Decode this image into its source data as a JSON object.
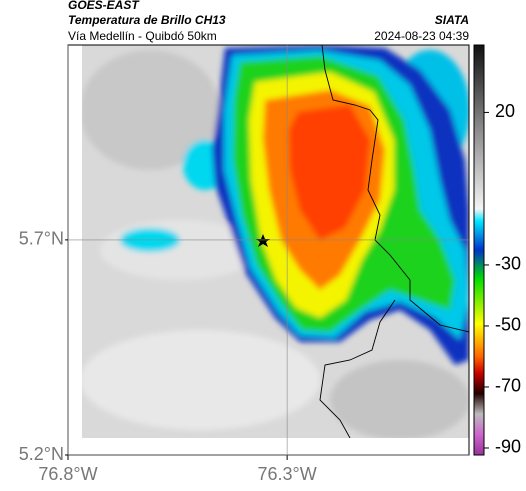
{
  "header": {
    "satellite": "GOES-EAST",
    "product": "Temperatura de Brillo CH13",
    "source": "SIATA",
    "route": "Vía Medellín - Quibdó 50km",
    "timestamp": "2024-08-23 04:39"
  },
  "map": {
    "xlim": [
      -76.8,
      -75.885
    ],
    "ylim": [
      5.2,
      6.153
    ],
    "xticks": [
      {
        "value": -76.8,
        "label": "76.8°W"
      },
      {
        "value": -76.3,
        "label": "76.3°W"
      }
    ],
    "yticks": [
      {
        "value": 5.7,
        "label": "5.7°N"
      },
      {
        "value": 5.2,
        "label": "5.2°N"
      }
    ],
    "grid": true
  },
  "colorbar": {
    "lim": [
      -92.3,
      42.1
    ],
    "ticks": [
      20,
      -30,
      -50,
      -70,
      -90
    ]
  }
}
